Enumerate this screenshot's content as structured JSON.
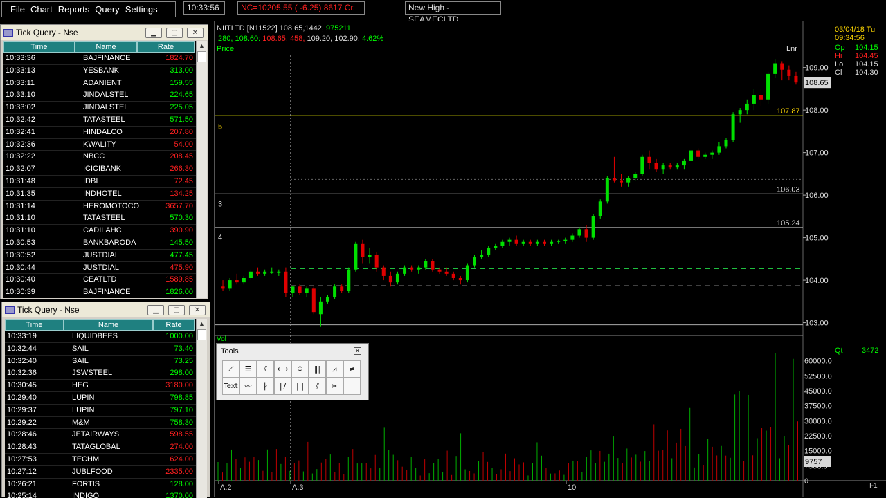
{
  "menu": {
    "file": "File",
    "chart": "Chart",
    "reports": "Reports",
    "query": "Query",
    "settings": "Settings"
  },
  "toolbar": {
    "clock": "10:33:56",
    "nc": "NC=10205.55 (  -6.25) 8617 Cr.",
    "new_high": "New High - SEAMECLTD"
  },
  "tick1": {
    "title": "Tick Query - Nse",
    "headers": [
      "Time",
      "Name",
      "Rate"
    ],
    "rows": [
      [
        "10:33:36",
        "BAJFINANCE",
        "1824.70",
        "dn"
      ],
      [
        "10:33:13",
        "YESBANK",
        "313.00",
        "up"
      ],
      [
        "10:33:11",
        "ADANIENT",
        "159.55",
        "up"
      ],
      [
        "10:33:10",
        "JINDALSTEL",
        "224.65",
        "up"
      ],
      [
        "10:33:02",
        "JINDALSTEL",
        "225.05",
        "up"
      ],
      [
        "10:32:42",
        "TATASTEEL",
        "571.50",
        "up"
      ],
      [
        "10:32:41",
        "HINDALCO",
        "207.80",
        "dn"
      ],
      [
        "10:32:36",
        "KWALITY",
        "54.00",
        "dn"
      ],
      [
        "10:32:22",
        "NBCC",
        "208.45",
        "dn"
      ],
      [
        "10:32:07",
        "ICICIBANK",
        "266.30",
        "dn"
      ],
      [
        "10:31:48",
        "IDBI",
        "72.45",
        "dn"
      ],
      [
        "10:31:35",
        "INDHOTEL",
        "134.25",
        "dn"
      ],
      [
        "10:31:14",
        "HEROMOTOCO",
        "3657.70",
        "dn"
      ],
      [
        "10:31:10",
        "TATASTEEL",
        "570.30",
        "up"
      ],
      [
        "10:31:10",
        "CADILAHC",
        "390.90",
        "dn"
      ],
      [
        "10:30:53",
        "BANKBARODA",
        "145.50",
        "up"
      ],
      [
        "10:30:52",
        "JUSTDIAL",
        "477.45",
        "up"
      ],
      [
        "10:30:44",
        "JUSTDIAL",
        "475.90",
        "dn"
      ],
      [
        "10:30:40",
        "CEATLTD",
        "1589.85",
        "dn"
      ],
      [
        "10:30:39",
        "BAJFINANCE",
        "1826.00",
        "up"
      ]
    ]
  },
  "tick2": {
    "title": "Tick Query - Nse",
    "headers": [
      "Time",
      "Name",
      "Rate"
    ],
    "rows": [
      [
        "10:33:19",
        "LIQUIDBEES",
        "1000.00",
        "up"
      ],
      [
        "10:32:44",
        "SAIL",
        "73.40",
        "up"
      ],
      [
        "10:32:40",
        "SAIL",
        "73.25",
        "up"
      ],
      [
        "10:32:36",
        "JSWSTEEL",
        "298.00",
        "up"
      ],
      [
        "10:30:45",
        "HEG",
        "3180.00",
        "dn"
      ],
      [
        "10:29:40",
        "LUPIN",
        "798.85",
        "up"
      ],
      [
        "10:29:37",
        "LUPIN",
        "797.10",
        "up"
      ],
      [
        "10:29:22",
        "M&M",
        "758.30",
        "up"
      ],
      [
        "10:28:46",
        "JETAIRWAYS",
        "598.55",
        "dn"
      ],
      [
        "10:28:43",
        "TATAGLOBAL",
        "274.00",
        "dn"
      ],
      [
        "10:27:53",
        "TECHM",
        "624.00",
        "dn"
      ],
      [
        "10:27:12",
        "JUBLFOOD",
        "2335.00",
        "dn"
      ],
      [
        "10:26:21",
        "FORTIS",
        "128.00",
        "up"
      ],
      [
        "10:25:14",
        "INDIGO",
        "1370.00",
        "up"
      ]
    ]
  },
  "chart": {
    "info_line1_a": "NIITLTD [N11522]  108.65,1442,  ",
    "info_line1_b": "975211",
    "info_line2_a": " 280,  108.60: ",
    "info_line2_b": "108.65, 458,",
    "info_line2_c": "  109.20,  102.90,  ",
    "info_line2_d": "4.62%",
    "price_label": "Price",
    "lnr": "Lnr",
    "date": "03/04/18 Tu",
    "time": "09:34:56",
    "op_lbl": "Op",
    "op": "104.15",
    "hi_lbl": "Hi",
    "hi": "104.45",
    "lo_lbl": "Lo",
    "lo": "104.15",
    "cl_lbl": "Cl",
    "cl": "104.30",
    "qt_lbl": "Qt",
    "qt": "3472",
    "vol_lbl": "Vol",
    "last_price": "108.65",
    "last_vol": "9757",
    "price_ticks": [
      "109.00",
      "108.00",
      "107.00",
      "106.00",
      "105.00",
      "104.00",
      "103.00"
    ],
    "vol_ticks": [
      "60000.0",
      "52500.0",
      "45000.0",
      "37500.0",
      "30000.0",
      "22500.0",
      "15000.0",
      "7500.0",
      "0"
    ],
    "level_labels": [
      "107.87",
      "106.03",
      "105.24"
    ],
    "wave_labels": [
      "5",
      "3",
      "4"
    ],
    "x_labels": [
      "A:2",
      "A:3",
      "10"
    ],
    "corner": "I-1"
  },
  "tools": {
    "title": "Tools",
    "text_btn": "Text"
  },
  "chart_data": {
    "type": "candlestick",
    "title": "NIITLTD [N11522]",
    "price_range": [
      102.8,
      109.3
    ],
    "candles": [
      [
        103.85,
        104.0,
        103.75,
        103.8
      ],
      [
        103.8,
        104.05,
        103.75,
        104.0
      ],
      [
        104.0,
        104.15,
        103.9,
        103.95
      ],
      [
        103.95,
        104.1,
        103.9,
        104.05
      ],
      [
        104.05,
        104.25,
        104.0,
        104.2
      ],
      [
        104.2,
        104.3,
        104.1,
        104.15
      ],
      [
        104.15,
        104.25,
        104.1,
        104.2
      ],
      [
        104.2,
        104.3,
        104.15,
        104.2
      ],
      [
        104.2,
        104.25,
        104.1,
        104.2
      ],
      [
        104.2,
        104.3,
        103.6,
        103.7
      ],
      [
        103.7,
        103.85,
        103.6,
        103.85
      ],
      [
        103.85,
        103.9,
        103.65,
        103.7
      ],
      [
        103.7,
        103.85,
        103.6,
        103.8
      ],
      [
        103.8,
        103.85,
        103.2,
        103.25
      ],
      [
        103.2,
        103.6,
        102.9,
        103.5
      ],
      [
        103.5,
        103.65,
        103.45,
        103.6
      ],
      [
        103.6,
        103.9,
        103.55,
        103.85
      ],
      [
        103.85,
        103.9,
        103.7,
        103.75
      ],
      [
        103.75,
        104.3,
        103.7,
        104.25
      ],
      [
        104.25,
        104.9,
        104.2,
        104.85
      ],
      [
        104.85,
        104.95,
        104.4,
        104.55
      ],
      [
        104.55,
        104.75,
        104.4,
        104.6
      ],
      [
        104.6,
        104.65,
        104.2,
        104.3
      ],
      [
        104.3,
        104.35,
        104.0,
        104.1
      ],
      [
        104.1,
        104.2,
        103.85,
        103.95
      ],
      [
        103.95,
        104.2,
        103.9,
        104.15
      ],
      [
        104.15,
        104.35,
        104.1,
        104.3
      ],
      [
        104.3,
        104.35,
        104.2,
        104.25
      ],
      [
        104.25,
        104.35,
        104.15,
        104.3
      ],
      [
        104.3,
        104.5,
        104.25,
        104.45
      ],
      [
        104.45,
        104.5,
        104.2,
        104.25
      ],
      [
        104.25,
        104.3,
        104.15,
        104.2
      ],
      [
        104.2,
        104.3,
        104.1,
        104.15
      ],
      [
        104.15,
        104.2,
        104.0,
        104.05
      ],
      [
        104.05,
        104.1,
        103.9,
        104.0
      ],
      [
        104.0,
        104.4,
        103.95,
        104.35
      ],
      [
        104.35,
        104.6,
        104.3,
        104.55
      ],
      [
        104.55,
        104.7,
        104.5,
        104.6
      ],
      [
        104.6,
        104.8,
        104.55,
        104.75
      ],
      [
        104.75,
        104.85,
        104.7,
        104.8
      ],
      [
        104.8,
        104.95,
        104.75,
        104.9
      ],
      [
        104.9,
        105.0,
        104.8,
        104.95
      ],
      [
        104.95,
        105.05,
        104.8,
        104.85
      ],
      [
        104.85,
        104.95,
        104.8,
        104.9
      ],
      [
        104.9,
        104.95,
        104.8,
        104.85
      ],
      [
        104.85,
        104.95,
        104.8,
        104.9
      ],
      [
        104.9,
        104.95,
        104.8,
        104.85
      ],
      [
        104.85,
        104.95,
        104.8,
        104.9
      ],
      [
        104.9,
        104.95,
        104.85,
        104.92
      ],
      [
        104.92,
        105.0,
        104.85,
        104.95
      ],
      [
        104.95,
        105.1,
        104.9,
        105.05
      ],
      [
        105.05,
        105.25,
        105.0,
        105.2
      ],
      [
        105.2,
        105.3,
        104.9,
        105.0
      ],
      [
        105.0,
        105.55,
        104.95,
        105.5
      ],
      [
        105.5,
        105.9,
        105.45,
        105.85
      ],
      [
        105.85,
        106.45,
        105.8,
        106.4
      ],
      [
        106.4,
        106.9,
        106.3,
        106.35
      ],
      [
        106.35,
        106.5,
        106.2,
        106.3
      ],
      [
        106.3,
        106.45,
        106.2,
        106.4
      ],
      [
        106.4,
        106.55,
        106.35,
        106.5
      ],
      [
        106.5,
        106.95,
        106.45,
        106.9
      ],
      [
        106.9,
        107.05,
        106.6,
        106.75
      ],
      [
        106.75,
        106.85,
        106.55,
        106.6
      ],
      [
        106.6,
        106.75,
        106.5,
        106.7
      ],
      [
        106.7,
        106.75,
        106.6,
        106.65
      ],
      [
        106.65,
        106.75,
        106.6,
        106.7
      ],
      [
        106.7,
        106.85,
        106.6,
        106.8
      ],
      [
        106.8,
        107.15,
        106.75,
        107.05
      ],
      [
        107.05,
        107.1,
        106.85,
        106.9
      ],
      [
        106.9,
        107.0,
        106.85,
        106.95
      ],
      [
        106.95,
        107.05,
        106.85,
        107.0
      ],
      [
        107.0,
        107.25,
        106.95,
        107.15
      ],
      [
        107.15,
        107.35,
        107.1,
        107.3
      ],
      [
        107.3,
        107.95,
        107.25,
        107.9
      ],
      [
        107.9,
        108.05,
        107.7,
        108.0
      ],
      [
        108.0,
        108.25,
        107.9,
        108.15
      ],
      [
        108.15,
        108.5,
        108.0,
        108.35
      ],
      [
        108.35,
        108.5,
        108.1,
        108.25
      ],
      [
        108.25,
        108.9,
        108.15,
        108.85
      ],
      [
        108.85,
        109.2,
        108.75,
        109.1
      ],
      [
        109.1,
        109.15,
        108.7,
        108.95
      ],
      [
        108.95,
        109.05,
        108.7,
        108.8
      ],
      [
        108.8,
        108.9,
        108.6,
        108.65
      ]
    ],
    "volume_ylim": [
      0,
      67500
    ],
    "volume_ticks": [
      0,
      7500,
      15000,
      22500,
      30000,
      37500,
      45000,
      52500,
      60000
    ],
    "levels": [
      107.87,
      106.03,
      105.24
    ],
    "last_price": 108.65,
    "last_volume": 9757
  }
}
